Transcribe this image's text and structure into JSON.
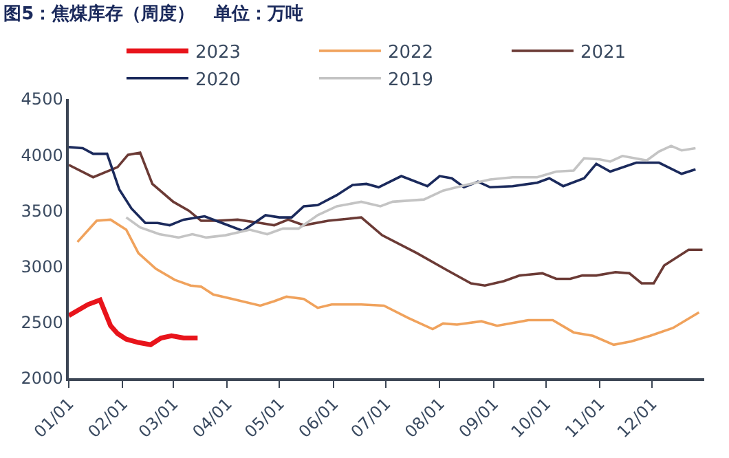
{
  "chart_data": {
    "type": "line",
    "title": "图5：焦煤库存（周度）   单位：万吨",
    "xlim": [
      "--01-01",
      "--12-31"
    ],
    "xticks": [
      {
        "value": "--01-01",
        "label": "01/01"
      },
      {
        "value": "--02-01",
        "label": "02/01"
      },
      {
        "value": "--03-01",
        "label": "03/01"
      },
      {
        "value": "--04-01",
        "label": "04/01"
      },
      {
        "value": "--05-01",
        "label": "05/01"
      },
      {
        "value": "--06-01",
        "label": "06/01"
      },
      {
        "value": "--07-01",
        "label": "07/01"
      },
      {
        "value": "--08-01",
        "label": "08/01"
      },
      {
        "value": "--09-01",
        "label": "09/01"
      },
      {
        "value": "--10-01",
        "label": "10/01"
      },
      {
        "value": "--11-01",
        "label": "11/01"
      },
      {
        "value": "--12-01",
        "label": "12/01"
      }
    ],
    "ylim": [
      2000,
      4500
    ],
    "yticks": [
      2000,
      2500,
      3000,
      3500,
      4000,
      4500
    ],
    "legend": "top",
    "marker": "none",
    "line_style": "solid",
    "series": [
      {
        "name": "2023",
        "color": "#e8141b",
        "x": [
          "--01-01",
          "--01-12",
          "--01-19",
          "--01-25",
          "--01-29",
          "--02-03",
          "--02-10",
          "--02-17",
          "--02-23",
          "--02-29",
          "--03-07",
          "--03-15"
        ],
        "values": [
          2560,
          2660,
          2700,
          2470,
          2400,
          2350,
          2320,
          2300,
          2360,
          2380,
          2360,
          2360
        ]
      },
      {
        "name": "2022",
        "color": "#f0a25c",
        "x": [
          "--01-06",
          "--01-17",
          "--01-25",
          "--02-03",
          "--02-10",
          "--02-20",
          "--03-02",
          "--03-11",
          "--03-17",
          "--03-24",
          "--04-04",
          "--04-20",
          "--04-28",
          "--05-05",
          "--05-15",
          "--05-23",
          "--05-31",
          "--06-17",
          "--06-30",
          "--07-14",
          "--07-28",
          "--08-03",
          "--08-11",
          "--08-25",
          "--09-03",
          "--09-21",
          "--10-05",
          "--10-17",
          "--10-28",
          "--11-09",
          "--11-19",
          "--11-30",
          "--12-13",
          "--12-28"
        ],
        "values": [
          3220,
          3410,
          3420,
          3330,
          3120,
          2980,
          2880,
          2830,
          2820,
          2750,
          2710,
          2650,
          2690,
          2730,
          2710,
          2630,
          2660,
          2660,
          2650,
          2540,
          2440,
          2490,
          2480,
          2510,
          2470,
          2520,
          2520,
          2410,
          2380,
          2300,
          2330,
          2380,
          2450,
          2590
        ]
      },
      {
        "name": "2021",
        "color": "#6b3a35",
        "x": [
          "--01-01",
          "--01-15",
          "--01-29",
          "--02-04",
          "--02-11",
          "--02-18",
          "--03-01",
          "--03-10",
          "--03-17",
          "--03-26",
          "--04-07",
          "--04-20",
          "--04-28",
          "--05-06",
          "--05-15",
          "--05-29",
          "--06-17",
          "--06-29",
          "--07-19",
          "--08-05",
          "--08-19",
          "--08-27",
          "--09-07",
          "--09-16",
          "--09-29",
          "--10-07",
          "--10-15",
          "--10-22",
          "--10-30",
          "--11-10",
          "--11-18",
          "--11-25",
          "--12-02",
          "--12-08",
          "--12-22",
          "--12-30"
        ],
        "values": [
          3910,
          3800,
          3890,
          4000,
          4020,
          3740,
          3580,
          3500,
          3410,
          3410,
          3420,
          3390,
          3370,
          3420,
          3370,
          3410,
          3440,
          3280,
          3120,
          2970,
          2850,
          2830,
          2870,
          2920,
          2940,
          2890,
          2890,
          2920,
          2920,
          2950,
          2940,
          2850,
          2850,
          3010,
          3150,
          3150
        ]
      },
      {
        "name": "2020",
        "color": "#1b2a5c",
        "x": [
          "--01-01",
          "--01-09",
          "--01-15",
          "--01-23",
          "--01-30",
          "--02-06",
          "--02-14",
          "--02-21",
          "--02-28",
          "--03-07",
          "--03-19",
          "--03-29",
          "--04-10",
          "--04-23",
          "--05-01",
          "--05-08",
          "--05-15",
          "--05-23",
          "--06-03",
          "--06-12",
          "--06-20",
          "--06-27",
          "--07-10",
          "--07-25",
          "--08-01",
          "--08-08",
          "--08-15",
          "--08-23",
          "--08-30",
          "--09-12",
          "--09-26",
          "--10-03",
          "--10-11",
          "--10-23",
          "--10-30",
          "--11-07",
          "--11-22",
          "--12-05",
          "--12-18",
          "--12-26"
        ],
        "values": [
          4070,
          4060,
          4010,
          4010,
          3690,
          3520,
          3390,
          3390,
          3370,
          3420,
          3450,
          3390,
          3320,
          3460,
          3440,
          3440,
          3540,
          3550,
          3640,
          3730,
          3740,
          3710,
          3810,
          3720,
          3810,
          3790,
          3710,
          3760,
          3710,
          3720,
          3750,
          3790,
          3720,
          3790,
          3920,
          3850,
          3930,
          3930,
          3830,
          3870
        ]
      },
      {
        "name": "2019",
        "color": "#c4c4c4",
        "x": [
          "--02-03",
          "--02-11",
          "--02-22",
          "--03-04",
          "--03-12",
          "--03-20",
          "--03-31",
          "--04-14",
          "--04-24",
          "--05-03",
          "--05-12",
          "--05-23",
          "--06-03",
          "--06-17",
          "--06-28",
          "--07-05",
          "--07-23",
          "--08-03",
          "--08-16",
          "--08-30",
          "--09-12",
          "--09-26",
          "--10-07",
          "--10-17",
          "--10-23",
          "--11-01",
          "--11-07",
          "--11-14",
          "--11-28",
          "--12-05",
          "--12-12",
          "--12-18",
          "--12-26"
        ],
        "values": [
          3440,
          3350,
          3290,
          3260,
          3290,
          3260,
          3280,
          3330,
          3290,
          3340,
          3340,
          3460,
          3540,
          3580,
          3540,
          3580,
          3600,
          3680,
          3730,
          3780,
          3800,
          3800,
          3850,
          3860,
          3970,
          3960,
          3940,
          3990,
          3950,
          4030,
          4080,
          4040,
          4060
        ]
      }
    ]
  }
}
